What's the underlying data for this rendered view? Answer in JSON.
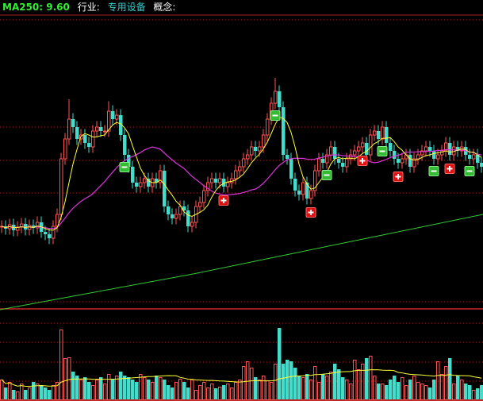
{
  "header": {
    "ma250_label": "MA250: 9.60",
    "industry_label": "行业:",
    "industry_value": "专用设备",
    "concept_label": "概念:"
  },
  "colors": {
    "up": "#ff5555",
    "down": "#44ddcc",
    "ma_short": "#ffff33",
    "ma_mid": "#dd33dd",
    "ma250": "#33cc33",
    "grid": "#aa2222",
    "buy_marker": "#dd1111",
    "sell_marker": "#33bb33"
  },
  "chart_data": {
    "type": "candlestick",
    "title": "",
    "grid": true,
    "open": [
      9.28,
      9.3,
      9.24,
      9.34,
      9.2,
      9.28,
      9.36,
      9.22,
      9.32,
      9.26,
      9.4,
      9.16,
      9.1,
      9.0,
      9.3,
      9.6,
      11.0,
      11.5,
      12.0,
      11.8,
      11.5,
      11.6,
      11.4,
      11.3,
      11.7,
      11.8,
      11.7,
      11.7,
      12.2,
      12.0,
      12.1,
      11.6,
      11.1,
      10.8,
      10.4,
      10.3,
      10.4,
      10.5,
      10.3,
      10.5,
      10.4,
      10.7,
      9.8,
      9.6,
      9.5,
      9.6,
      9.8,
      9.7,
      9.3,
      9.4,
      9.8,
      9.9,
      10.2,
      10.4,
      10.5,
      10.4,
      10.5,
      10.3,
      10.4,
      10.5,
      10.7,
      10.8,
      11.0,
      11.1,
      11.3,
      11.2,
      11.3,
      11.6,
      12.0,
      12.4,
      12.7,
      12.3,
      11.1,
      11.0,
      10.5,
      10.2,
      10.1,
      10.4,
      10.0,
      10.2,
      10.7,
      11.0,
      10.9,
      11.1,
      11.3,
      11.0,
      10.9,
      10.8,
      11.0,
      11.1,
      11.2,
      11.3,
      11.4,
      11.1,
      11.6,
      11.7,
      11.5,
      11.8,
      11.4,
      11.2,
      11.0,
      10.9,
      11.0,
      11.1,
      10.8,
      11.0,
      11.1,
      11.2,
      11.3,
      11.2,
      11.0,
      11.1,
      11.2,
      11.4,
      11.1,
      11.3,
      11.2,
      11.3,
      11.1,
      11.0,
      11.1,
      10.9
    ],
    "high": [
      9.45,
      9.45,
      9.49,
      9.49,
      9.43,
      9.51,
      9.51,
      9.47,
      9.47,
      9.55,
      9.55,
      9.31,
      9.25,
      9.45,
      9.75,
      11.15,
      11.65,
      12.5,
      12.15,
      11.95,
      11.75,
      11.75,
      11.55,
      11.85,
      11.95,
      11.95,
      11.85,
      12.45,
      12.35,
      12.25,
      12.25,
      11.75,
      11.25,
      10.95,
      10.55,
      10.55,
      10.65,
      10.65,
      10.65,
      10.65,
      10.85,
      10.85,
      9.95,
      9.75,
      9.75,
      9.95,
      9.95,
      9.85,
      9.55,
      9.95,
      10.05,
      10.35,
      10.55,
      10.65,
      10.65,
      10.65,
      10.65,
      10.55,
      10.65,
      10.85,
      10.95,
      11.15,
      11.25,
      11.45,
      11.45,
      11.45,
      11.75,
      12.15,
      12.55,
      13.04,
      12.85,
      12.45,
      11.25,
      11.15,
      10.65,
      10.35,
      10.55,
      10.55,
      10.35,
      10.85,
      11.15,
      11.15,
      11.25,
      11.45,
      11.45,
      11.15,
      11.05,
      11.15,
      11.25,
      11.35,
      11.45,
      11.55,
      11.55,
      11.75,
      11.85,
      11.85,
      11.95,
      11.95,
      11.55,
      11.35,
      11.15,
      11.15,
      11.25,
      11.25,
      11.15,
      11.25,
      11.35,
      11.45,
      11.45,
      11.35,
      11.25,
      11.35,
      11.55,
      11.55,
      11.45,
      11.45,
      11.45,
      11.45,
      11.25,
      11.25,
      11.25,
      11.05
    ],
    "low": [
      9.13,
      9.09,
      9.09,
      9.05,
      9.05,
      9.13,
      9.07,
      9.07,
      9.11,
      9.11,
      9.01,
      8.95,
      8.85,
      8.85,
      9.15,
      9.45,
      10.85,
      11.35,
      11.65,
      11.35,
      11.35,
      11.25,
      11.15,
      11.15,
      11.55,
      11.55,
      11.55,
      11.55,
      11.85,
      11.85,
      11.45,
      10.95,
      10.65,
      10.25,
      10.15,
      10.15,
      10.25,
      10.15,
      10.15,
      10.25,
      10.25,
      9.65,
      9.45,
      9.35,
      9.35,
      9.45,
      9.55,
      9.15,
      9.15,
      9.25,
      9.65,
      9.75,
      10.05,
      10.25,
      10.25,
      10.25,
      10.15,
      10.15,
      10.25,
      10.35,
      10.55,
      10.65,
      10.85,
      10.95,
      11.05,
      11.05,
      11.15,
      11.45,
      11.85,
      12.25,
      12.15,
      10.95,
      10.85,
      10.35,
      10.05,
      9.95,
      9.95,
      9.85,
      9.85,
      10.05,
      10.55,
      10.75,
      10.75,
      10.95,
      10.85,
      10.75,
      10.65,
      10.65,
      10.85,
      10.95,
      11.05,
      11.15,
      10.95,
      10.95,
      11.45,
      11.35,
      11.35,
      11.25,
      11.05,
      10.85,
      10.75,
      10.75,
      10.85,
      10.65,
      10.65,
      10.85,
      10.95,
      11.05,
      11.05,
      10.85,
      10.85,
      10.95,
      11.05,
      10.95,
      10.95,
      11.05,
      11.05,
      10.95,
      10.85,
      10.85,
      10.75,
      10.65
    ],
    "close": [
      9.3,
      9.24,
      9.34,
      9.2,
      9.28,
      9.36,
      9.22,
      9.32,
      9.26,
      9.4,
      9.16,
      9.1,
      9.0,
      9.3,
      9.6,
      11.0,
      11.5,
      12.0,
      11.8,
      11.5,
      11.6,
      11.4,
      11.3,
      11.7,
      11.8,
      11.7,
      11.7,
      12.2,
      12.0,
      12.1,
      11.6,
      11.1,
      10.8,
      10.4,
      10.3,
      10.4,
      10.5,
      10.3,
      10.5,
      10.4,
      10.7,
      9.8,
      9.6,
      9.5,
      9.6,
      9.8,
      9.7,
      9.3,
      9.4,
      9.8,
      9.9,
      10.2,
      10.4,
      10.5,
      10.4,
      10.5,
      10.3,
      10.4,
      10.5,
      10.7,
      10.8,
      11.0,
      11.1,
      11.3,
      11.2,
      11.3,
      11.6,
      12.0,
      12.4,
      12.7,
      12.3,
      11.1,
      11.0,
      10.5,
      10.2,
      10.1,
      10.4,
      10.0,
      10.2,
      10.7,
      11.0,
      10.9,
      11.1,
      11.3,
      11.0,
      10.9,
      10.8,
      11.0,
      11.1,
      11.2,
      11.3,
      11.4,
      11.1,
      11.6,
      11.7,
      11.5,
      11.8,
      11.4,
      11.2,
      11.0,
      10.9,
      11.0,
      11.1,
      10.8,
      11.0,
      11.1,
      11.2,
      11.3,
      11.2,
      11.0,
      11.1,
      11.2,
      11.4,
      11.1,
      11.3,
      11.2,
      11.3,
      11.1,
      11.0,
      11.1,
      10.9,
      10.8
    ],
    "volume": [
      25,
      15,
      22,
      12,
      10,
      20,
      12,
      15,
      22,
      20,
      18,
      15,
      12,
      18,
      22,
      88,
      52,
      53,
      35,
      30,
      25,
      28,
      22,
      18,
      25,
      28,
      20,
      32,
      25,
      30,
      35,
      30,
      28,
      25,
      22,
      32,
      28,
      25,
      22,
      30,
      28,
      25,
      18,
      15,
      22,
      26,
      22,
      15,
      25,
      12,
      18,
      22,
      15,
      20,
      14,
      16,
      18,
      20,
      15,
      22,
      25,
      42,
      48,
      40,
      28,
      25,
      30,
      24,
      22,
      45,
      90,
      45,
      50,
      48,
      40,
      30,
      28,
      32,
      25,
      42,
      22,
      32,
      30,
      35,
      45,
      38,
      28,
      25,
      20,
      50,
      38,
      45,
      52,
      55,
      30,
      20,
      20,
      18,
      25,
      30,
      22,
      28,
      18,
      25,
      30,
      22,
      20,
      18,
      15,
      25,
      48,
      32,
      42,
      52,
      20,
      30,
      25,
      20,
      18,
      12,
      14,
      18
    ],
    "ma250": [
      7.2,
      7.65,
      8.1,
      8.6,
      9.1,
      9.6
    ],
    "signals": [
      {
        "index": 32,
        "type": "sell"
      },
      {
        "index": 57,
        "type": "buy"
      },
      {
        "index": 70,
        "type": "sell"
      },
      {
        "index": 79,
        "type": "buy"
      },
      {
        "index": 83,
        "type": "sell"
      },
      {
        "index": 92,
        "type": "buy"
      },
      {
        "index": 97,
        "type": "sell"
      },
      {
        "index": 101,
        "type": "buy"
      },
      {
        "index": 110,
        "type": "sell"
      },
      {
        "index": 114,
        "type": "buy"
      },
      {
        "index": 119,
        "type": "sell"
      }
    ]
  }
}
